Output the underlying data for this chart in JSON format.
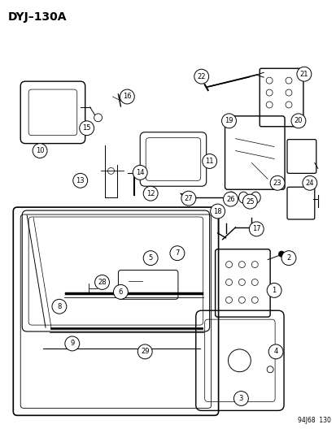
{
  "title": "DYJ–130A",
  "subtitle": "94J68  130",
  "bg_color": "#ffffff",
  "fig_width": 4.14,
  "fig_height": 5.33,
  "dpi": 100
}
